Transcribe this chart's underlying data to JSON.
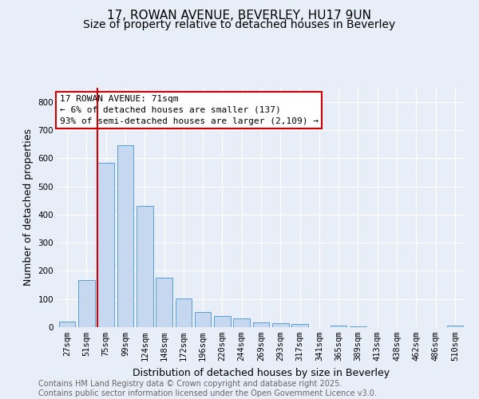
{
  "title1": "17, ROWAN AVENUE, BEVERLEY, HU17 9UN",
  "title2": "Size of property relative to detached houses in Beverley",
  "xlabel": "Distribution of detached houses by size in Beverley",
  "ylabel": "Number of detached properties",
  "footer1": "Contains HM Land Registry data © Crown copyright and database right 2025.",
  "footer2": "Contains public sector information licensed under the Open Government Licence v3.0.",
  "categories": [
    "27sqm",
    "51sqm",
    "75sqm",
    "99sqm",
    "124sqm",
    "148sqm",
    "172sqm",
    "196sqm",
    "220sqm",
    "244sqm",
    "269sqm",
    "293sqm",
    "317sqm",
    "341sqm",
    "365sqm",
    "389sqm",
    "413sqm",
    "438sqm",
    "462sqm",
    "486sqm",
    "510sqm"
  ],
  "values": [
    20,
    168,
    585,
    645,
    430,
    175,
    102,
    55,
    40,
    30,
    17,
    15,
    10,
    0,
    5,
    2,
    0,
    0,
    0,
    0,
    5
  ],
  "bar_color": "#c5d8f0",
  "bar_edge_color": "#5a9fd4",
  "vline_color": "#cc0000",
  "annotation_text": "17 ROWAN AVENUE: 71sqm\n← 6% of detached houses are smaller (137)\n93% of semi-detached houses are larger (2,109) →",
  "annotation_box_color": "#ffffff",
  "annotation_box_edge": "#cc0000",
  "ylim": [
    0,
    850
  ],
  "yticks": [
    0,
    100,
    200,
    300,
    400,
    500,
    600,
    700,
    800
  ],
  "background_color": "#e8eef8",
  "grid_color": "#ffffff",
  "title_fontsize": 11,
  "subtitle_fontsize": 10,
  "axis_label_fontsize": 9,
  "tick_fontsize": 7.5,
  "annotation_fontsize": 8,
  "footer_fontsize": 7
}
